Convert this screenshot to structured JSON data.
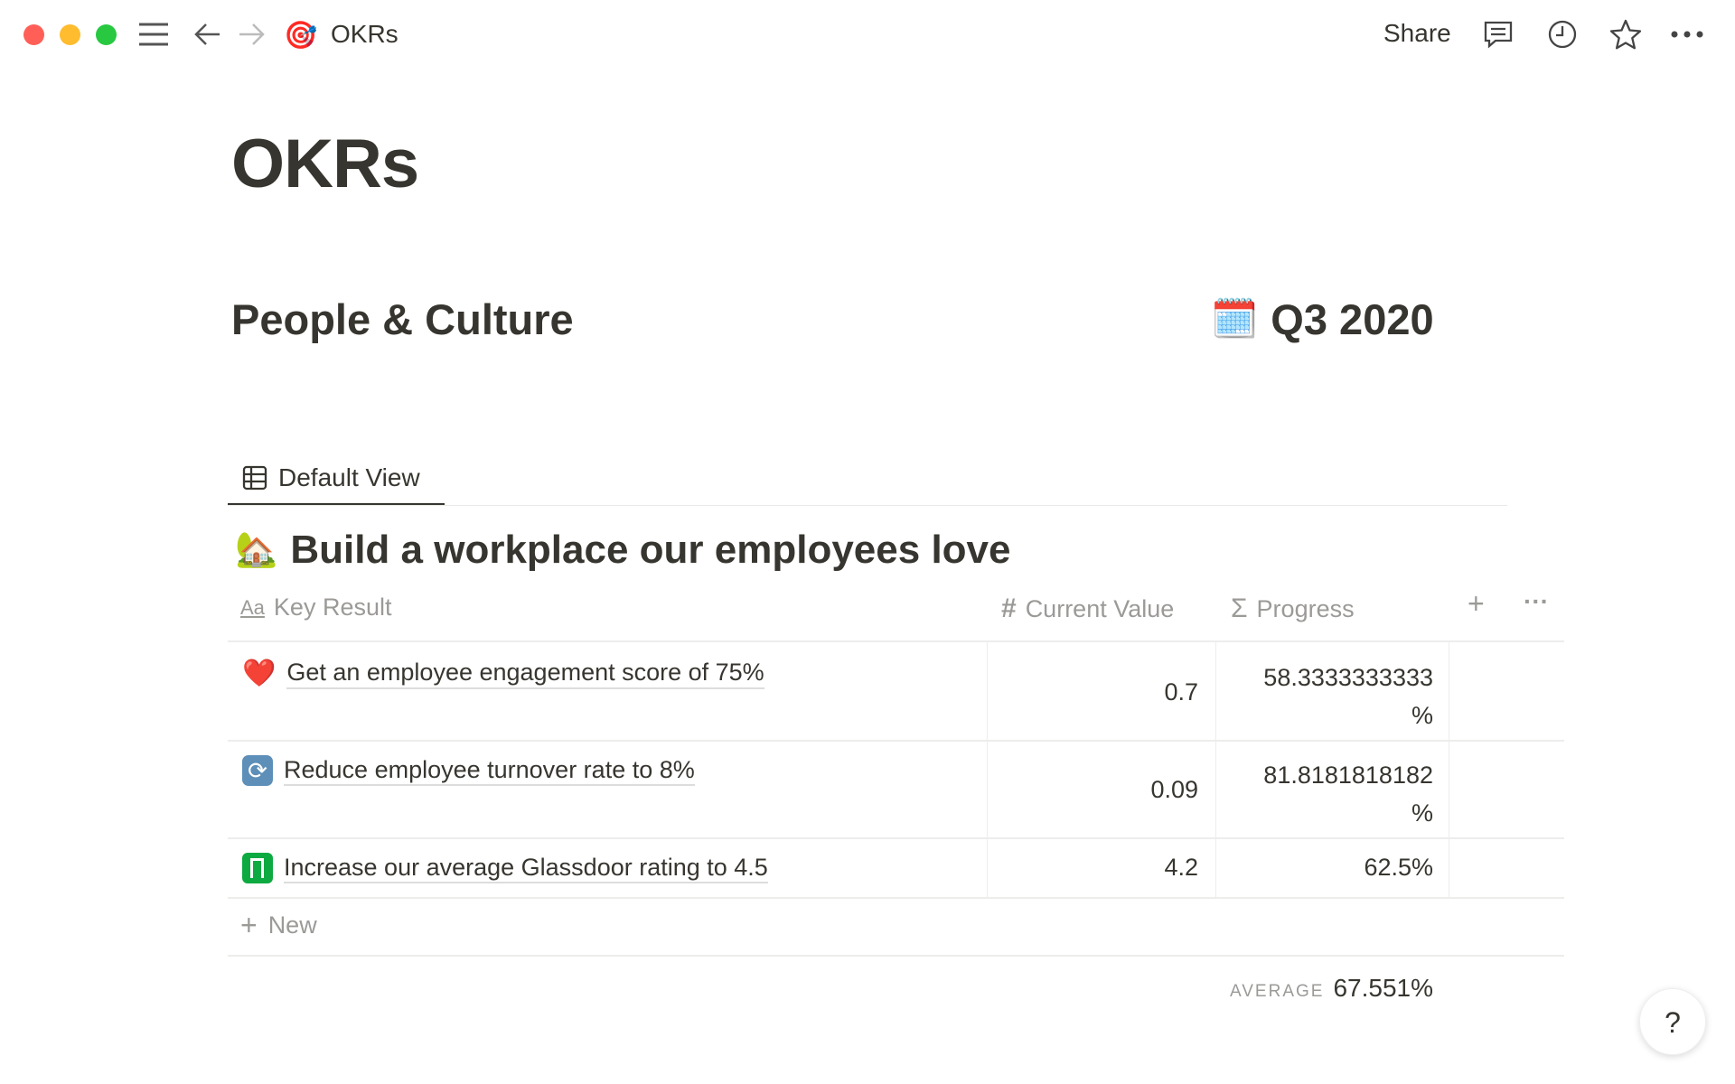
{
  "titlebar": {
    "page_title": "OKRs",
    "share": "Share",
    "page_icon": "target-icon"
  },
  "page": {
    "title": "OKRs",
    "team": "People & Culture",
    "quarter": "Q3 2020",
    "quarter_icon": "calendar-icon"
  },
  "view": {
    "tab": "Default View"
  },
  "group": {
    "icon": "house-with-tree-icon",
    "title": "Build a workplace our employees love"
  },
  "table": {
    "columns": {
      "key_result": "Key Result",
      "current_value": "Current Value",
      "progress": "Progress"
    },
    "rows": [
      {
        "icon": "heart-icon",
        "key_result": "Get an employee engagement score of 75%",
        "current_value": "0.7",
        "progress_line1": "58.3333333333",
        "progress_line2": "%"
      },
      {
        "icon": "refresh-icon",
        "key_result": "Reduce employee turnover rate to 8%",
        "current_value": "0.09",
        "progress_line1": "81.8181818182",
        "progress_line2": "%"
      },
      {
        "icon": "glassdoor-icon",
        "key_result": "Increase our average Glassdoor rating to 4.5",
        "current_value": "4.2",
        "progress_line1": "62.5%",
        "progress_line2": ""
      }
    ],
    "new_label": "New",
    "average_label": "AVERAGE",
    "average_value": "67.551%"
  },
  "help": "?"
}
